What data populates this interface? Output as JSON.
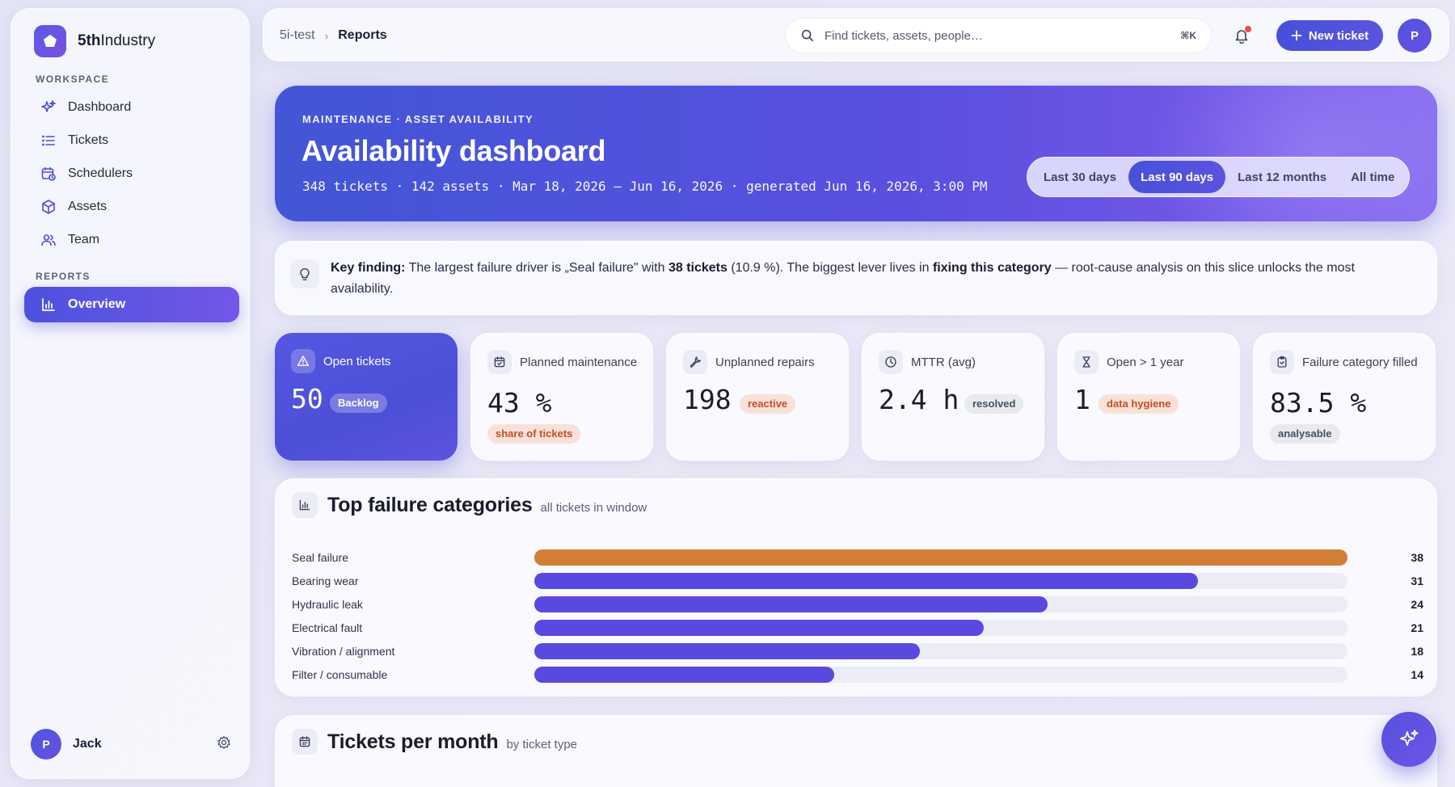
{
  "brand": {
    "name_bold": "5th",
    "name_rest": "Industry"
  },
  "sidebar": {
    "workspace_label": "WORKSPACE",
    "reports_label": "REPORTS",
    "items": [
      {
        "label": "Dashboard",
        "icon": "sparkle-icon"
      },
      {
        "label": "Tickets",
        "icon": "list-icon"
      },
      {
        "label": "Schedulers",
        "icon": "calendar-clock-icon"
      },
      {
        "label": "Assets",
        "icon": "cube-icon"
      },
      {
        "label": "Team",
        "icon": "users-icon"
      }
    ],
    "report_items": [
      {
        "label": "Overview",
        "icon": "bar-chart-icon",
        "active": true
      }
    ],
    "user": {
      "initial": "P",
      "name": "Jack"
    }
  },
  "topbar": {
    "breadcrumb": [
      "5i-test",
      "Reports"
    ],
    "search_placeholder": "Find tickets, assets, people…",
    "search_shortcut": "⌘K",
    "new_ticket_label": "New ticket",
    "avatar_initial": "P"
  },
  "hero": {
    "eyebrow": "MAINTENANCE · ASSET AVAILABILITY",
    "title": "Availability dashboard",
    "meta": "348 tickets · 142 assets · Mar 18, 2026 – Jun 16, 2026 · generated Jun 16, 2026, 3:00 PM",
    "ranges": [
      "Last 30 days",
      "Last 90 days",
      "Last 12 months",
      "All time"
    ],
    "active_range": "Last 90 days"
  },
  "finding": {
    "lead": "Key finding:",
    "t1": " The largest failure driver is „Seal failure\" with ",
    "b1": "38 tickets",
    "t2": " (10.9 %). The biggest lever lives in ",
    "b2": "fixing this category",
    "t3": " — root-cause analysis on this slice unlocks the most availability."
  },
  "kpis": [
    {
      "label": "Open tickets",
      "value": "50",
      "pill": "Backlog",
      "icon": "warning-icon"
    },
    {
      "label": "Planned maintenance",
      "value": "43 %",
      "pill": "share of tickets",
      "icon": "calendar-check-icon"
    },
    {
      "label": "Unplanned repairs",
      "value": "198",
      "pill": "reactive",
      "icon": "wrench-icon"
    },
    {
      "label": "MTTR (avg)",
      "value": "2.4 h",
      "pill": "resolved",
      "icon": "clock-icon"
    },
    {
      "label": "Open > 1 year",
      "value": "1",
      "pill": "data hygiene",
      "icon": "hourglass-icon"
    },
    {
      "label": "Failure category filled",
      "value": "83.5 %",
      "pill": "analysable",
      "icon": "clipboard-check-icon"
    }
  ],
  "failures": {
    "title": "Top failure categories",
    "subtitle": "all tickets in window",
    "highlight_color": "#d27f36",
    "bar_color": "#5a49de"
  },
  "chart_data": {
    "type": "bar",
    "orientation": "horizontal",
    "title": "Top failure categories",
    "categories": [
      "Seal failure",
      "Bearing wear",
      "Hydraulic leak",
      "Electrical fault",
      "Vibration / alignment",
      "Filter / consumable"
    ],
    "values": [
      38,
      31,
      24,
      21,
      18,
      14
    ],
    "xlim": [
      0,
      38
    ]
  },
  "monthly": {
    "title": "Tickets per month",
    "subtitle": "by ticket type"
  }
}
